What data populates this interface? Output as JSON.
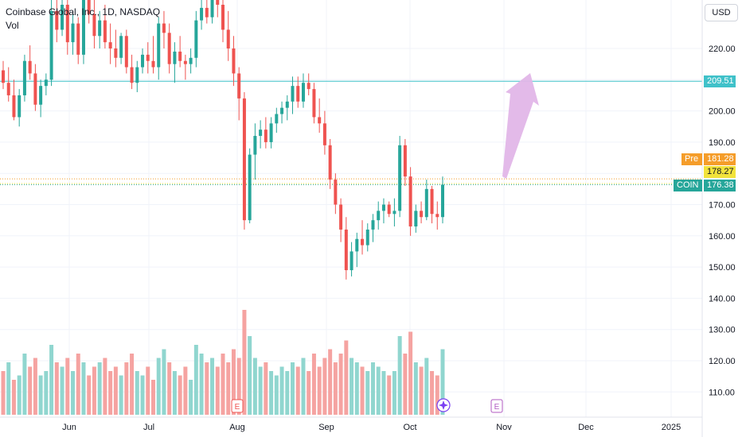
{
  "header": {
    "symbol_title": "Coinbase Global, Inc., 1D, NASDAQ",
    "volume_label": "Vol"
  },
  "currency_button": "USD",
  "price_badges": {
    "alert_level": "209.51",
    "premarket_label": "Pre",
    "premarket_value": "181.28",
    "prev_close_value": "178.27",
    "symbol_label": "COIN",
    "last_value": "176.38"
  },
  "event_markers": [
    "E",
    "E"
  ],
  "colors": {
    "up": "#26a69a",
    "down": "#ef5350",
    "up_volume": "#90d6cf",
    "down_volume": "#f5a3a1",
    "alert_line": "#3fc1c9",
    "premarket": "#f59d2a",
    "prev_close": "#f2e33b",
    "arrow": "#e2b6e8"
  },
  "chart_data": {
    "type": "candlestick",
    "title": "Coinbase Global, Inc., 1D, NASDAQ",
    "y_ticks": [
      "220.00",
      "210.00",
      "200.00",
      "190.00",
      "180.00",
      "170.00",
      "160.00",
      "150.00",
      "140.00",
      "130.00",
      "120.00",
      "110.00"
    ],
    "ylim": [
      103,
      238
    ],
    "x_ticks": [
      "Jun",
      "Jul",
      "Aug",
      "Sep",
      "Oct",
      "Nov",
      "Dec",
      "2025"
    ],
    "horizontal_levels": [
      209.51,
      181.28,
      178.27,
      176.38
    ],
    "candles": [
      [
        213,
        216,
        207,
        209
      ],
      [
        209,
        214,
        203,
        205
      ],
      [
        205,
        210,
        197,
        198
      ],
      [
        198,
        207,
        195,
        205
      ],
      [
        205,
        218,
        203,
        216
      ],
      [
        216,
        221,
        210,
        212
      ],
      [
        212,
        215,
        200,
        202
      ],
      [
        202,
        210,
        198,
        208
      ],
      [
        208,
        212,
        205,
        210
      ],
      [
        210,
        236,
        208,
        232
      ],
      [
        232,
        240,
        222,
        226
      ],
      [
        226,
        238,
        224,
        234
      ],
      [
        234,
        236,
        218,
        222
      ],
      [
        222,
        232,
        218,
        228
      ],
      [
        228,
        230,
        215,
        218
      ],
      [
        218,
        238,
        215,
        236
      ],
      [
        236,
        240,
        228,
        231
      ],
      [
        231,
        236,
        220,
        224
      ],
      [
        224,
        232,
        220,
        229
      ],
      [
        229,
        234,
        220,
        222
      ],
      [
        222,
        228,
        215,
        220
      ],
      [
        220,
        226,
        214,
        217
      ],
      [
        217,
        225,
        215,
        224
      ],
      [
        224,
        226,
        212,
        214
      ],
      [
        214,
        218,
        207,
        209
      ],
      [
        209,
        216,
        206,
        214
      ],
      [
        214,
        220,
        212,
        218
      ],
      [
        218,
        222,
        212,
        216
      ],
      [
        216,
        224,
        212,
        214
      ],
      [
        214,
        230,
        210,
        228
      ],
      [
        228,
        232,
        220,
        225
      ],
      [
        225,
        228,
        212,
        215
      ],
      [
        215,
        222,
        209,
        219
      ],
      [
        219,
        224,
        214,
        216
      ],
      [
        216,
        218,
        210,
        215
      ],
      [
        215,
        220,
        212,
        217
      ],
      [
        217,
        232,
        214,
        229
      ],
      [
        229,
        236,
        226,
        233
      ],
      [
        233,
        237,
        228,
        230
      ],
      [
        230,
        240,
        228,
        238
      ],
      [
        238,
        240,
        230,
        234
      ],
      [
        234,
        238,
        222,
        226
      ],
      [
        226,
        232,
        216,
        220
      ],
      [
        220,
        224,
        208,
        212
      ],
      [
        212,
        214,
        197,
        204
      ],
      [
        204,
        206,
        162,
        165
      ],
      [
        165,
        188,
        164,
        186
      ],
      [
        186,
        196,
        178,
        192
      ],
      [
        192,
        197,
        188,
        194
      ],
      [
        194,
        198,
        188,
        190
      ],
      [
        190,
        198,
        188,
        196
      ],
      [
        196,
        201,
        193,
        199
      ],
      [
        199,
        203,
        196,
        201
      ],
      [
        201,
        205,
        197,
        203
      ],
      [
        203,
        211,
        199,
        208
      ],
      [
        208,
        211,
        201,
        203
      ],
      [
        203,
        212,
        201,
        209
      ],
      [
        209,
        212,
        205,
        207
      ],
      [
        207,
        209,
        196,
        198
      ],
      [
        198,
        204,
        193,
        196
      ],
      [
        196,
        200,
        186,
        189
      ],
      [
        189,
        191,
        175,
        178
      ],
      [
        178,
        180,
        167,
        170
      ],
      [
        170,
        172,
        158,
        162
      ],
      [
        162,
        166,
        146,
        149
      ],
      [
        149,
        158,
        147,
        155
      ],
      [
        155,
        161,
        150,
        159
      ],
      [
        159,
        165,
        154,
        157
      ],
      [
        157,
        164,
        155,
        162
      ],
      [
        162,
        167,
        158,
        165
      ],
      [
        165,
        171,
        162,
        168
      ],
      [
        168,
        172,
        164,
        170
      ],
      [
        170,
        171,
        166,
        167
      ],
      [
        167,
        172,
        163,
        168
      ],
      [
        168,
        192,
        166,
        189
      ],
      [
        189,
        191,
        176,
        179
      ],
      [
        179,
        182,
        160,
        163
      ],
      [
        163,
        170,
        161,
        168
      ],
      [
        168,
        171,
        164,
        166
      ],
      [
        166,
        178,
        165,
        175
      ],
      [
        175,
        176,
        164,
        167
      ],
      [
        167,
        171,
        162,
        166
      ],
      [
        166,
        179,
        164,
        176.38
      ]
    ],
    "volume_ylabel": "Vol",
    "volume": [
      [
        10,
        0
      ],
      [
        12,
        1
      ],
      [
        8,
        0
      ],
      [
        9,
        1
      ],
      [
        14,
        1
      ],
      [
        11,
        0
      ],
      [
        13,
        0
      ],
      [
        9,
        1
      ],
      [
        10,
        1
      ],
      [
        16,
        1
      ],
      [
        12,
        0
      ],
      [
        11,
        1
      ],
      [
        13,
        0
      ],
      [
        10,
        1
      ],
      [
        14,
        0
      ],
      [
        12,
        1
      ],
      [
        9,
        0
      ],
      [
        11,
        0
      ],
      [
        12,
        1
      ],
      [
        13,
        0
      ],
      [
        10,
        0
      ],
      [
        11,
        0
      ],
      [
        9,
        1
      ],
      [
        12,
        0
      ],
      [
        14,
        0
      ],
      [
        10,
        1
      ],
      [
        9,
        1
      ],
      [
        11,
        0
      ],
      [
        8,
        0
      ],
      [
        13,
        1
      ],
      [
        15,
        1
      ],
      [
        12,
        0
      ],
      [
        10,
        1
      ],
      [
        9,
        0
      ],
      [
        11,
        0
      ],
      [
        8,
        1
      ],
      [
        16,
        1
      ],
      [
        14,
        1
      ],
      [
        12,
        0
      ],
      [
        13,
        1
      ],
      [
        11,
        0
      ],
      [
        14,
        0
      ],
      [
        12,
        0
      ],
      [
        15,
        0
      ],
      [
        13,
        0
      ],
      [
        24,
        0
      ],
      [
        18,
        1
      ],
      [
        13,
        1
      ],
      [
        11,
        1
      ],
      [
        12,
        0
      ],
      [
        10,
        1
      ],
      [
        9,
        1
      ],
      [
        11,
        1
      ],
      [
        10,
        1
      ],
      [
        12,
        1
      ],
      [
        11,
        0
      ],
      [
        13,
        1
      ],
      [
        10,
        0
      ],
      [
        14,
        0
      ],
      [
        11,
        0
      ],
      [
        13,
        0
      ],
      [
        15,
        0
      ],
      [
        12,
        0
      ],
      [
        14,
        0
      ],
      [
        17,
        0
      ],
      [
        13,
        1
      ],
      [
        12,
        1
      ],
      [
        11,
        0
      ],
      [
        10,
        1
      ],
      [
        12,
        1
      ],
      [
        11,
        1
      ],
      [
        10,
        1
      ],
      [
        9,
        0
      ],
      [
        10,
        1
      ],
      [
        18,
        1
      ],
      [
        14,
        0
      ],
      [
        19,
        0
      ],
      [
        12,
        1
      ],
      [
        11,
        0
      ],
      [
        13,
        1
      ],
      [
        10,
        0
      ],
      [
        9,
        0
      ],
      [
        15,
        1
      ]
    ],
    "annotation": "upward arrow pointing toward 209.51"
  }
}
